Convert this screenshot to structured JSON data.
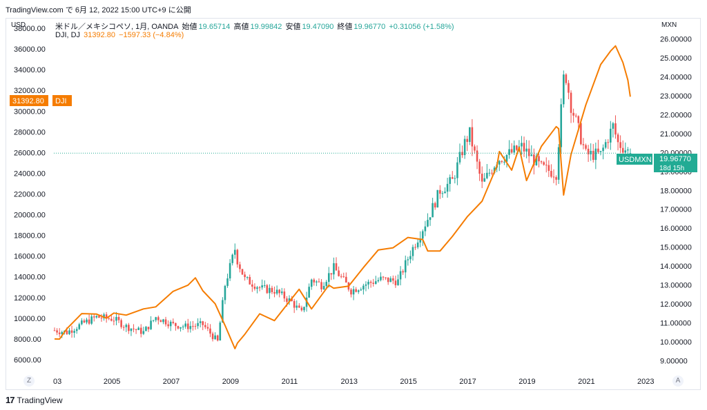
{
  "header": {
    "text": "TradingView.com で 6月 12, 2022 15:00 UTC+9 に公開"
  },
  "legend": {
    "symbol1": "米ドル／メキシコペソ, 1月, OANDA",
    "o_label": "始値",
    "o_value": "19.65714",
    "h_label": "高値",
    "h_value": "19.99842",
    "l_label": "安値",
    "l_value": "19.47090",
    "c_label": "終値",
    "c_value": "19.96770",
    "change": "+0.31056 (+1.58%)",
    "symbol2": "DJI, DJ",
    "dji_value": "31392.80",
    "dji_change": "−1597.33 (−4.84%)"
  },
  "axes": {
    "left_unit": "USD",
    "right_unit": "MXN",
    "left_ticks": [
      "38000.00",
      "36000.00",
      "34000.00",
      "32000.00",
      "30000.00",
      "28000.00",
      "26000.00",
      "24000.00",
      "22000.00",
      "20000.00",
      "18000.00",
      "16000.00",
      "14000.00",
      "12000.00",
      "10000.00",
      "8000.00",
      "6000.00"
    ],
    "right_ticks": [
      "26.00000",
      "25.00000",
      "24.00000",
      "23.00000",
      "22.00000",
      "21.00000",
      "20.00000",
      "19.00000",
      "18.00000",
      "17.00000",
      "16.00000",
      "15.00000",
      "14.00000",
      "13.00000",
      "12.00000",
      "11.00000",
      "10.00000",
      "9.00000"
    ],
    "x_ticks": [
      "03",
      "2005",
      "2007",
      "2009",
      "2011",
      "2013",
      "2015",
      "2017",
      "2019",
      "2021",
      "2023"
    ]
  },
  "badges": {
    "dji_price": "31392.80",
    "dji_name": "DJI",
    "usdmxn_name": "USDMXN",
    "usdmxn_price": "19.96770",
    "usdmxn_countdown": "18d 15h"
  },
  "colors": {
    "up": "#26a69a",
    "down": "#ef5350",
    "dji_line": "#f57c00",
    "badge_teal": "#22ab94"
  },
  "buttons": {
    "left": "Z",
    "right": "A"
  },
  "footer": {
    "brand": "TradingView",
    "logo": "17"
  },
  "chart_data": [
    {
      "type": "candlestick",
      "series_name": "USDMXN",
      "interval": "1M",
      "y_axis": "right",
      "ylim": [
        8.5,
        26.5
      ],
      "x_range": [
        "2003-01",
        "2023-01"
      ],
      "anchor_points": [
        [
          "2003-01",
          10.6
        ],
        [
          "2003-06",
          10.5
        ],
        [
          "2004-01",
          11.0
        ],
        [
          "2004-06",
          11.3
        ],
        [
          "2005-01",
          11.2
        ],
        [
          "2005-06",
          10.8
        ],
        [
          "2006-01",
          10.5
        ],
        [
          "2006-06",
          11.3
        ],
        [
          "2007-01",
          10.9
        ],
        [
          "2007-06",
          10.8
        ],
        [
          "2008-01",
          10.9
        ],
        [
          "2008-07",
          10.0
        ],
        [
          "2008-10",
          13.0
        ],
        [
          "2009-02",
          14.9
        ],
        [
          "2009-03",
          14.3
        ],
        [
          "2009-06",
          13.3
        ],
        [
          "2010-01",
          12.8
        ],
        [
          "2010-06",
          12.7
        ],
        [
          "2011-01",
          12.1
        ],
        [
          "2011-05",
          11.5
        ],
        [
          "2011-09",
          13.3
        ],
        [
          "2012-01",
          13.0
        ],
        [
          "2012-06",
          13.9
        ],
        [
          "2013-01",
          12.7
        ],
        [
          "2013-06",
          13.0
        ],
        [
          "2014-01",
          13.3
        ],
        [
          "2014-08",
          13.2
        ],
        [
          "2015-01",
          14.7
        ],
        [
          "2015-08",
          16.5
        ],
        [
          "2016-01",
          18.0
        ],
        [
          "2016-06",
          18.5
        ],
        [
          "2016-11",
          20.5
        ],
        [
          "2017-01",
          21.0
        ],
        [
          "2017-06",
          18.3
        ],
        [
          "2017-12",
          19.6
        ],
        [
          "2018-06",
          20.0
        ],
        [
          "2018-10",
          20.3
        ],
        [
          "2019-06",
          19.2
        ],
        [
          "2019-12",
          18.9
        ],
        [
          "2020-03",
          23.9
        ],
        [
          "2020-04",
          24.0
        ],
        [
          "2020-06",
          22.5
        ],
        [
          "2020-12",
          19.9
        ],
        [
          "2021-06",
          19.9
        ],
        [
          "2021-11",
          21.4
        ],
        [
          "2022-01",
          20.5
        ],
        [
          "2022-06",
          19.97
        ]
      ],
      "last": {
        "open": 19.65714,
        "high": 19.99842,
        "low": 19.4709,
        "close": 19.9677
      }
    },
    {
      "type": "line",
      "series_name": "DJI",
      "y_axis": "left",
      "ylim": [
        4600,
        39000
      ],
      "x_range": [
        "2003-01",
        "2023-01"
      ],
      "values": [
        [
          "2003-01",
          8000
        ],
        [
          "2003-03",
          7990
        ],
        [
          "2003-06",
          9000
        ],
        [
          "2003-12",
          10450
        ],
        [
          "2004-06",
          10400
        ],
        [
          "2004-10",
          10000
        ],
        [
          "2005-01",
          10500
        ],
        [
          "2005-06",
          10300
        ],
        [
          "2006-01",
          10900
        ],
        [
          "2006-06",
          11100
        ],
        [
          "2007-01",
          12600
        ],
        [
          "2007-07",
          13200
        ],
        [
          "2007-10",
          13900
        ],
        [
          "2008-01",
          12650
        ],
        [
          "2008-06",
          11400
        ],
        [
          "2008-10",
          9300
        ],
        [
          "2009-02",
          7060
        ],
        [
          "2009-03",
          7600
        ],
        [
          "2009-06",
          8450
        ],
        [
          "2009-12",
          10430
        ],
        [
          "2010-06",
          9770
        ],
        [
          "2010-12",
          11600
        ],
        [
          "2011-04",
          12800
        ],
        [
          "2011-09",
          10900
        ],
        [
          "2012-04",
          13200
        ],
        [
          "2012-06",
          12900
        ],
        [
          "2012-12",
          13100
        ],
        [
          "2013-06",
          14900
        ],
        [
          "2013-12",
          16600
        ],
        [
          "2014-06",
          16800
        ],
        [
          "2014-12",
          17800
        ],
        [
          "2015-06",
          17600
        ],
        [
          "2015-08",
          16500
        ],
        [
          "2016-01",
          16500
        ],
        [
          "2016-06",
          17900
        ],
        [
          "2016-12",
          19800
        ],
        [
          "2017-06",
          21300
        ],
        [
          "2017-12",
          24700
        ],
        [
          "2018-01",
          26100
        ],
        [
          "2018-06",
          24300
        ],
        [
          "2018-09",
          26500
        ],
        [
          "2018-12",
          23300
        ],
        [
          "2019-06",
          26600
        ],
        [
          "2019-12",
          28500
        ],
        [
          "2020-01",
          28300
        ],
        [
          "2020-03",
          21900
        ],
        [
          "2020-06",
          25800
        ],
        [
          "2020-12",
          30600
        ],
        [
          "2021-06",
          34500
        ],
        [
          "2021-10",
          35800
        ],
        [
          "2021-12",
          36300
        ],
        [
          "2022-03",
          34700
        ],
        [
          "2022-05",
          32990
        ],
        [
          "2022-06",
          31392.8
        ]
      ]
    }
  ]
}
